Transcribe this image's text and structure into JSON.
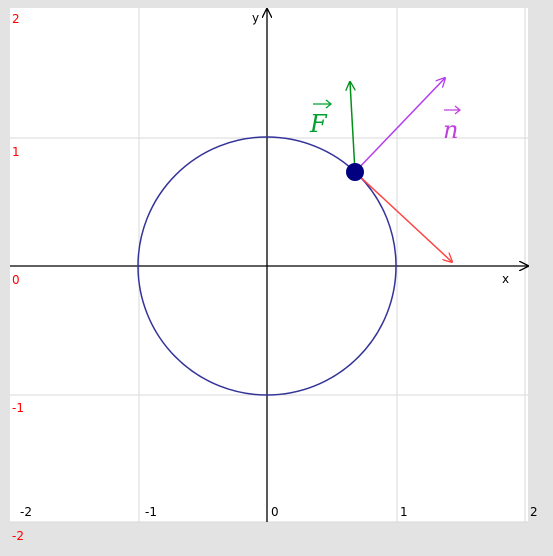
{
  "axes": {
    "x_label": "x",
    "y_label": "y",
    "x_ticks": [
      "-2",
      "-1",
      "0",
      "1",
      "2"
    ],
    "y_ticks": [
      "2",
      "1",
      "0",
      "-1",
      "-2"
    ]
  },
  "vectors": {
    "force_label": "F",
    "normal_label": "n"
  }
}
